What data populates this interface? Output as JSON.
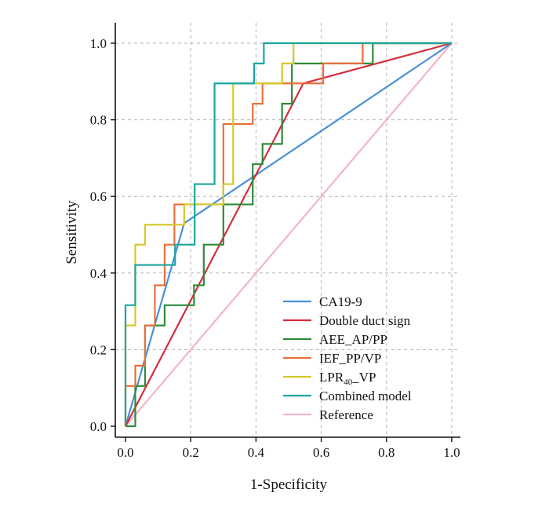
{
  "chart_data": {
    "type": "line",
    "title": "",
    "xlabel": "1-Specificity",
    "ylabel": "Sensitivity",
    "xlim": [
      0,
      1
    ],
    "ylim": [
      0,
      1
    ],
    "x_ticks": [
      "0.0",
      "0.2",
      "0.4",
      "0.6",
      "0.8",
      "1.0"
    ],
    "y_ticks": [
      "0.0",
      "0.2",
      "0.4",
      "0.6",
      "0.8",
      "1.0"
    ],
    "grid": true,
    "legend_position": "bottom-right",
    "series": [
      {
        "name": "CA19-9",
        "color": "#4a90d9",
        "points": [
          [
            0,
            0
          ],
          [
            0.18,
            0.53
          ],
          [
            1,
            1
          ]
        ]
      },
      {
        "name": "Double duct sign",
        "color": "#d42e3c",
        "points": [
          [
            0,
            0
          ],
          [
            0.545,
            0.895
          ],
          [
            1,
            1
          ]
        ]
      },
      {
        "name": "AEE_AP/PP",
        "color": "#2e8b3a",
        "points": [
          [
            0,
            0
          ],
          [
            0.03,
            0
          ],
          [
            0.03,
            0.105
          ],
          [
            0.06,
            0.105
          ],
          [
            0.06,
            0.263
          ],
          [
            0.12,
            0.263
          ],
          [
            0.12,
            0.316
          ],
          [
            0.21,
            0.316
          ],
          [
            0.21,
            0.368
          ],
          [
            0.24,
            0.368
          ],
          [
            0.24,
            0.474
          ],
          [
            0.3,
            0.474
          ],
          [
            0.3,
            0.579
          ],
          [
            0.39,
            0.579
          ],
          [
            0.39,
            0.684
          ],
          [
            0.42,
            0.684
          ],
          [
            0.42,
            0.737
          ],
          [
            0.48,
            0.737
          ],
          [
            0.48,
            0.842
          ],
          [
            0.51,
            0.842
          ],
          [
            0.51,
            0.947
          ],
          [
            0.606,
            0.947
          ],
          [
            0.606,
            0.947
          ],
          [
            0.758,
            0.947
          ],
          [
            0.758,
            1
          ],
          [
            1,
            1
          ]
        ]
      },
      {
        "name": "IEF_PP/VP",
        "color": "#e8703a",
        "points": [
          [
            0,
            0
          ],
          [
            0,
            0.105
          ],
          [
            0.03,
            0.105
          ],
          [
            0.03,
            0.158
          ],
          [
            0.06,
            0.158
          ],
          [
            0.06,
            0.263
          ],
          [
            0.09,
            0.263
          ],
          [
            0.09,
            0.368
          ],
          [
            0.12,
            0.368
          ],
          [
            0.12,
            0.474
          ],
          [
            0.15,
            0.474
          ],
          [
            0.15,
            0.579
          ],
          [
            0.21,
            0.579
          ],
          [
            0.21,
            0.579
          ],
          [
            0.3,
            0.579
          ],
          [
            0.3,
            0.789
          ],
          [
            0.39,
            0.789
          ],
          [
            0.39,
            0.842
          ],
          [
            0.42,
            0.842
          ],
          [
            0.42,
            0.895
          ],
          [
            0.48,
            0.895
          ],
          [
            0.48,
            0.895
          ],
          [
            0.606,
            0.895
          ],
          [
            0.606,
            0.947
          ],
          [
            0.727,
            0.947
          ],
          [
            0.727,
            1
          ],
          [
            1,
            1
          ]
        ]
      },
      {
        "name": "LPR40_VP",
        "color": "#d4c92a",
        "points": [
          [
            0,
            0
          ],
          [
            0,
            0.263
          ],
          [
            0.03,
            0.263
          ],
          [
            0.03,
            0.474
          ],
          [
            0.06,
            0.474
          ],
          [
            0.06,
            0.526
          ],
          [
            0.18,
            0.526
          ],
          [
            0.18,
            0.579
          ],
          [
            0.3,
            0.579
          ],
          [
            0.3,
            0.632
          ],
          [
            0.33,
            0.632
          ],
          [
            0.33,
            0.895
          ],
          [
            0.48,
            0.895
          ],
          [
            0.48,
            0.947
          ],
          [
            0.515,
            0.947
          ],
          [
            0.515,
            1
          ],
          [
            1,
            1
          ]
        ]
      },
      {
        "name": "Combined model",
        "color": "#1aa6a0",
        "points": [
          [
            0,
            0
          ],
          [
            0,
            0.316
          ],
          [
            0.03,
            0.316
          ],
          [
            0.03,
            0.421
          ],
          [
            0.152,
            0.421
          ],
          [
            0.152,
            0.474
          ],
          [
            0.212,
            0.474
          ],
          [
            0.212,
            0.632
          ],
          [
            0.273,
            0.632
          ],
          [
            0.273,
            0.895
          ],
          [
            0.394,
            0.895
          ],
          [
            0.394,
            0.947
          ],
          [
            0.424,
            0.947
          ],
          [
            0.424,
            1
          ],
          [
            1,
            1
          ]
        ]
      },
      {
        "name": "Reference",
        "color": "#f2b6c8",
        "points": [
          [
            0,
            0
          ],
          [
            1,
            1
          ]
        ]
      }
    ]
  }
}
